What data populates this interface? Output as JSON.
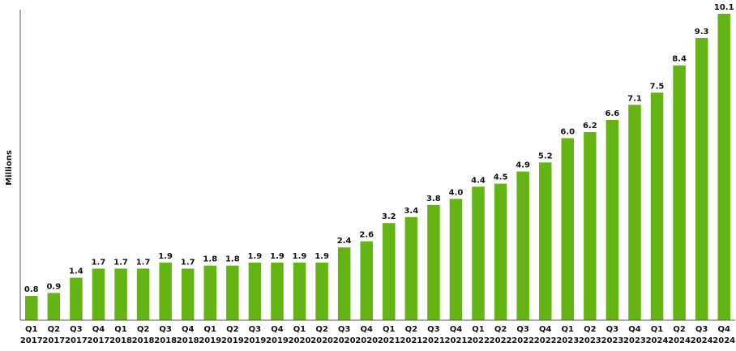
{
  "chart_data": {
    "type": "bar",
    "title": "",
    "xlabel": "",
    "ylabel": "Millions",
    "ylim": [
      0,
      10.1
    ],
    "grid": false,
    "bar_color": "#64b514",
    "axis_color": "#555555",
    "categories": [
      [
        "Q1",
        "2017"
      ],
      [
        "Q2",
        "2017"
      ],
      [
        "Q3",
        "2017"
      ],
      [
        "Q4",
        "2017"
      ],
      [
        "Q1",
        "2018"
      ],
      [
        "Q2",
        "2018"
      ],
      [
        "Q3",
        "2018"
      ],
      [
        "Q4",
        "2018"
      ],
      [
        "Q1",
        "2019"
      ],
      [
        "Q2",
        "2019"
      ],
      [
        "Q3",
        "2019"
      ],
      [
        "Q4",
        "2019"
      ],
      [
        "Q1",
        "2020"
      ],
      [
        "Q2",
        "2020"
      ],
      [
        "Q3",
        "2020"
      ],
      [
        "Q4",
        "2020"
      ],
      [
        "Q1",
        "2021"
      ],
      [
        "Q2",
        "2021"
      ],
      [
        "Q3",
        "2021"
      ],
      [
        "Q4",
        "2021"
      ],
      [
        "Q1",
        "2022"
      ],
      [
        "Q2",
        "2022"
      ],
      [
        "Q3",
        "2022"
      ],
      [
        "Q4",
        "2022"
      ],
      [
        "Q1",
        "2023"
      ],
      [
        "Q2",
        "2023"
      ],
      [
        "Q3",
        "2023"
      ],
      [
        "Q4",
        "2023"
      ],
      [
        "Q1",
        "2024"
      ],
      [
        "Q2",
        "2024"
      ],
      [
        "Q3",
        "2024"
      ],
      [
        "Q4",
        "2024"
      ]
    ],
    "values": [
      0.8,
      0.9,
      1.4,
      1.7,
      1.7,
      1.7,
      1.9,
      1.7,
      1.8,
      1.8,
      1.9,
      1.9,
      1.9,
      1.9,
      2.4,
      2.6,
      3.2,
      3.4,
      3.8,
      4.0,
      4.4,
      4.5,
      4.9,
      5.2,
      6.0,
      6.2,
      6.6,
      7.1,
      7.5,
      8.4,
      9.3,
      10.1
    ],
    "value_labels": [
      "0.8",
      "0.9",
      "1.4",
      "1.7",
      "1.7",
      "1.7",
      "1.9",
      "1.7",
      "1.8",
      "1.8",
      "1.9",
      "1.9",
      "1.9",
      "1.9",
      "2.4",
      "2.6",
      "3.2",
      "3.4",
      "3.8",
      "4.0",
      "4.4",
      "4.5",
      "4.9",
      "5.2",
      "6.0",
      "6.2",
      "6.6",
      "7.1",
      "7.5",
      "8.4",
      "9.3",
      "10.1"
    ]
  }
}
